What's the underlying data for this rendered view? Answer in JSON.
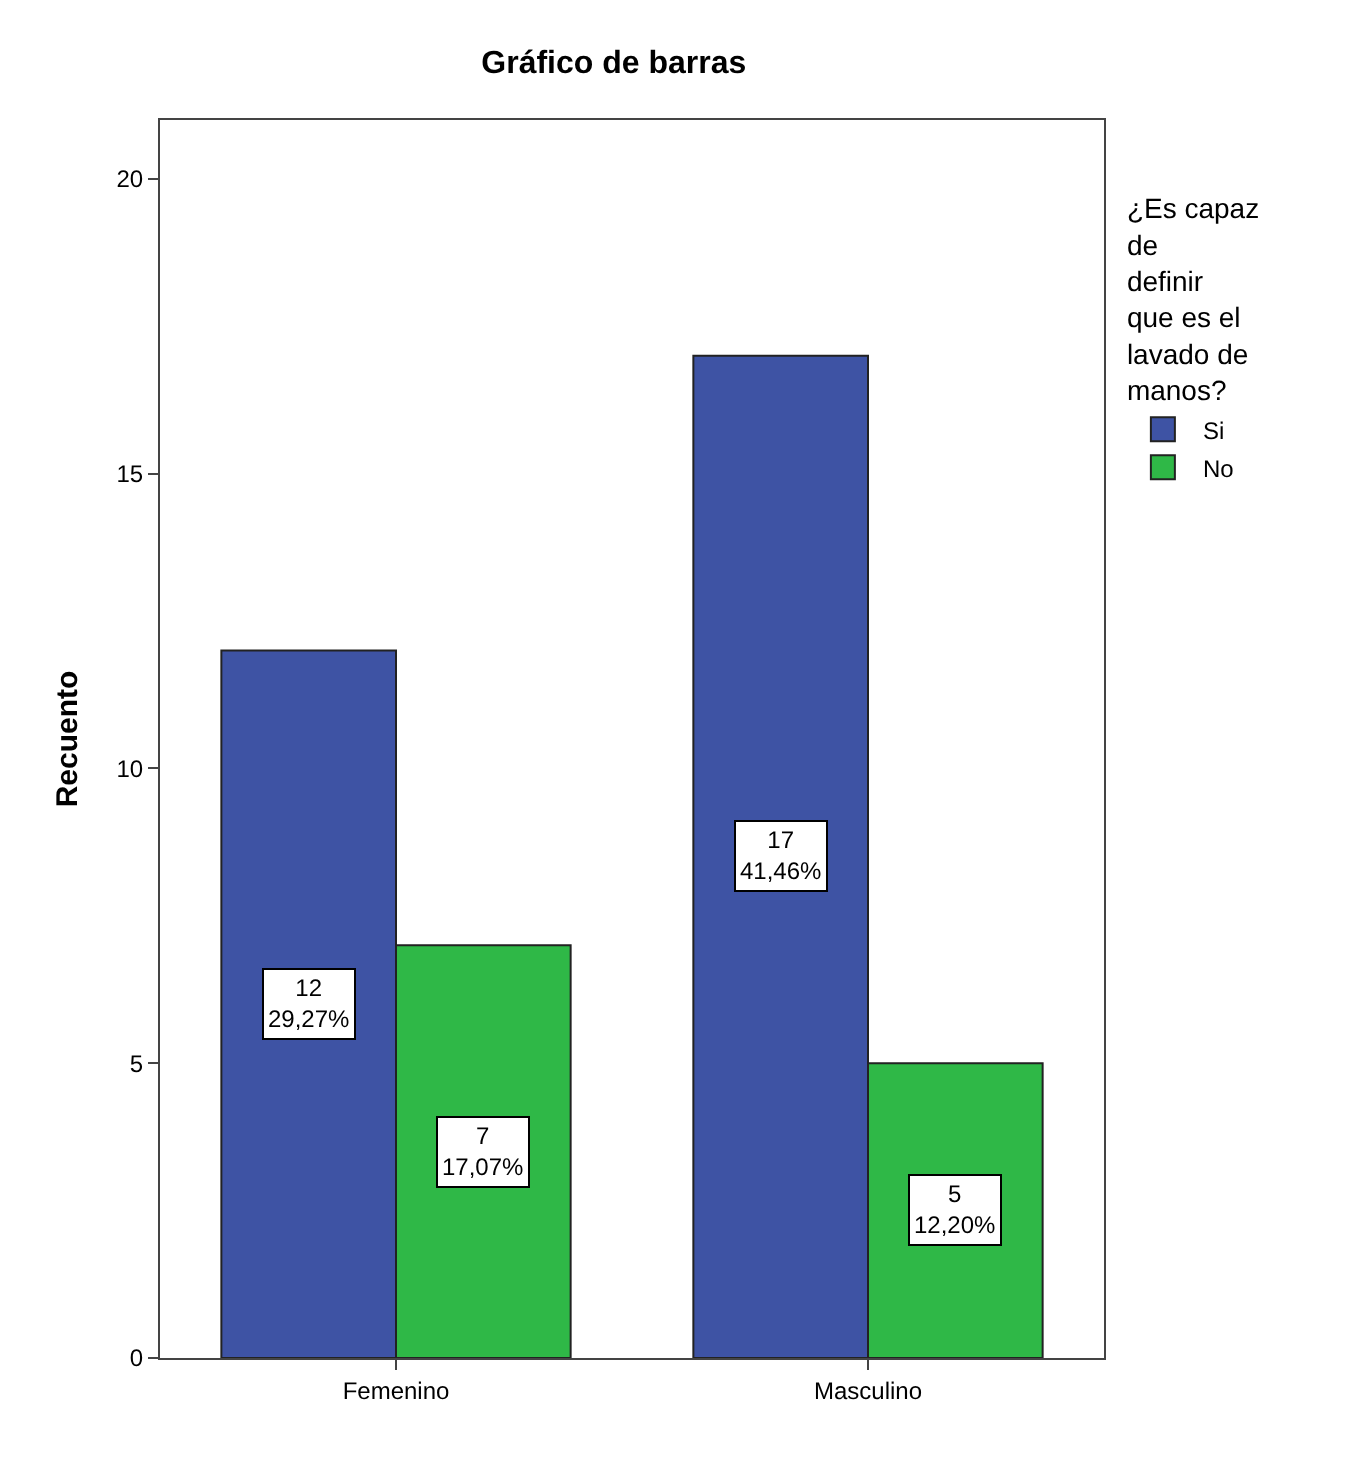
{
  "chart_data": {
    "type": "bar",
    "title": "Gráfico de barras",
    "ylabel": "Recuento",
    "legend_title": "¿Es capaz de definir que es el lavado de manos?",
    "categories": [
      "Femenino",
      "Masculino"
    ],
    "series": [
      {
        "name": "Si",
        "color": "#3e53a4",
        "values": [
          12,
          17
        ],
        "value_labels": [
          "12\n29,27%",
          "17\n41,46%"
        ]
      },
      {
        "name": "No",
        "color": "#2fb847",
        "values": [
          7,
          5
        ],
        "value_labels": [
          "7\n17,07%",
          "5\n12,20%"
        ]
      }
    ],
    "ylim": [
      0,
      21
    ],
    "yticks": [
      0,
      5,
      10,
      15,
      20
    ],
    "grid": false,
    "legend": "right"
  }
}
